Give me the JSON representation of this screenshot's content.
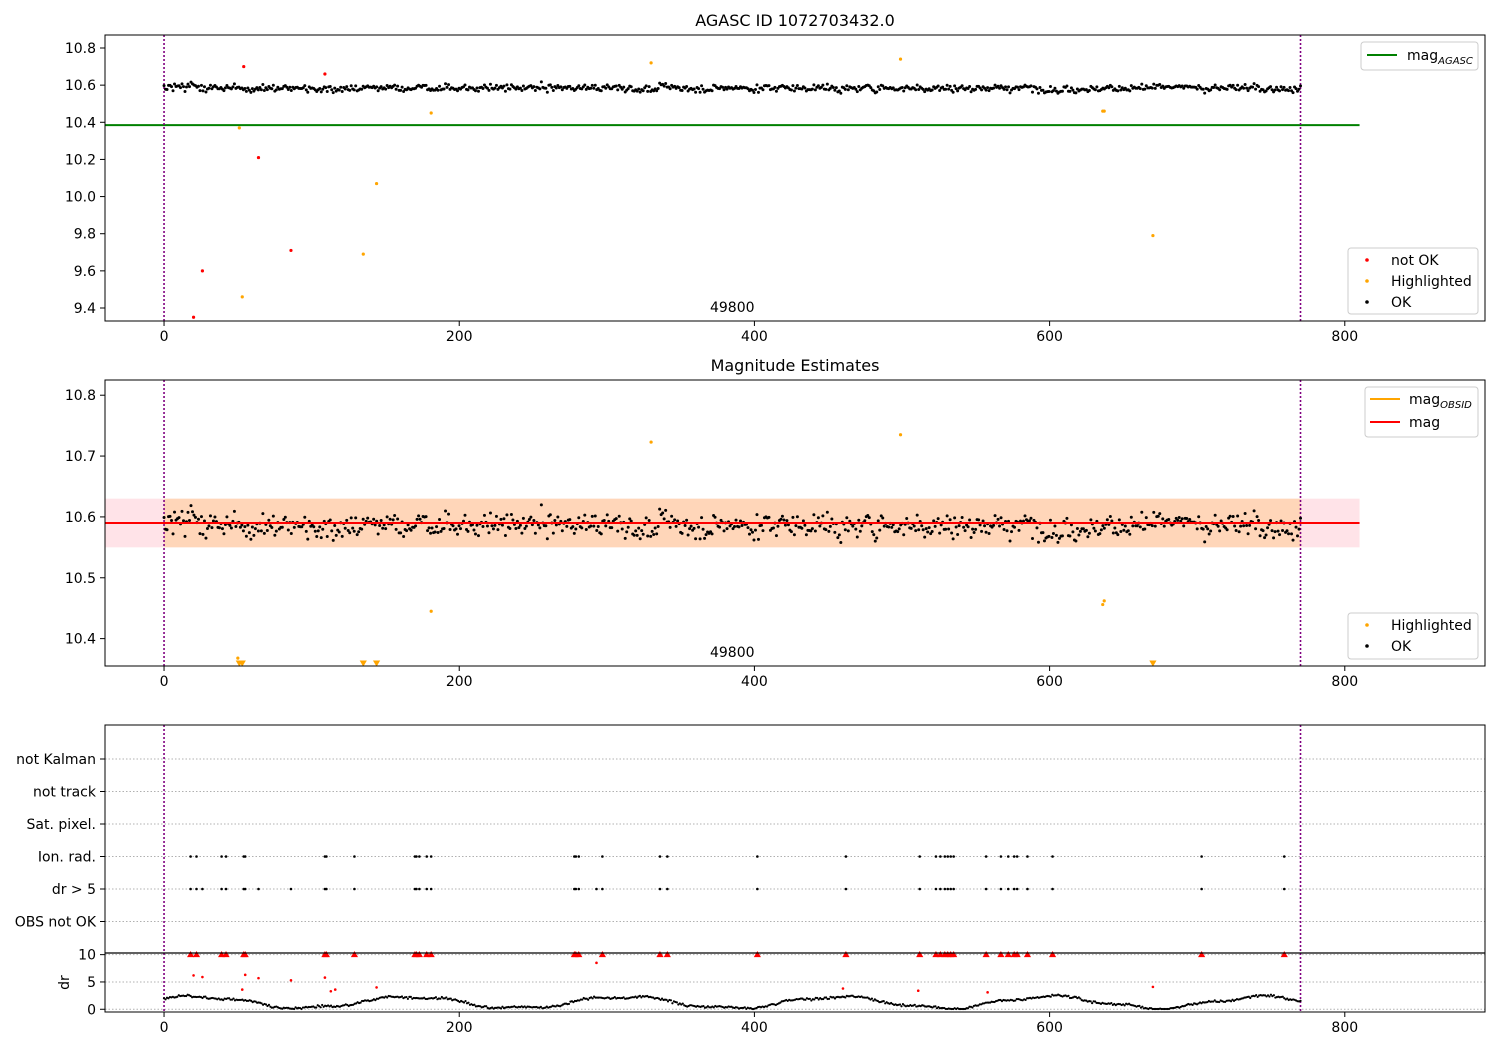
{
  "chart_data": [
    {
      "type": "scatter",
      "title": "AGASC ID 1072703432.0",
      "xlim": [
        -40,
        895
      ],
      "ylim": [
        9.33,
        10.87
      ],
      "x_ticks": [
        0,
        200,
        400,
        600,
        800
      ],
      "y_ticks": [
        9.4,
        9.6,
        9.8,
        10.0,
        10.2,
        10.4,
        10.6,
        10.8
      ],
      "annotation": "49800",
      "vlines": [
        0,
        770
      ],
      "legend_lines": {
        "position": "top-right",
        "entries": [
          {
            "label": "mag",
            "subscript": "AGASC",
            "color": "#008000"
          }
        ]
      },
      "legend_points": {
        "position": "bottom-right",
        "entries": [
          {
            "label": "not OK",
            "color": "#ff0000"
          },
          {
            "label": "Highlighted",
            "color": "#ffa500"
          },
          {
            "label": "OK",
            "color": "#000000"
          }
        ]
      },
      "mag_agasc": {
        "value": 10.385,
        "x_range": [
          -40,
          810
        ],
        "color": "#008000"
      },
      "ok_series": {
        "x_range": [
          0,
          770
        ],
        "count": 760,
        "center": 10.585,
        "spread": 0.03,
        "color": "#000000"
      },
      "not_ok_points": {
        "color": "#ff0000",
        "x": [
          20,
          26,
          54,
          64,
          86,
          109
        ],
        "y": [
          9.35,
          9.6,
          10.7,
          10.21,
          9.71,
          10.66
        ]
      },
      "highlighted_points": {
        "color": "#ffa500",
        "x": [
          51,
          53,
          135,
          144,
          181,
          330,
          499,
          636,
          637,
          670
        ],
        "y": [
          10.37,
          9.46,
          9.69,
          10.07,
          10.45,
          10.72,
          10.74,
          10.46,
          10.46,
          9.79
        ]
      }
    },
    {
      "type": "scatter",
      "title": "Magnitude Estimates",
      "xlim": [
        -40,
        895
      ],
      "ylim": [
        10.355,
        10.825
      ],
      "x_ticks": [
        0,
        200,
        400,
        600,
        800
      ],
      "y_ticks": [
        10.4,
        10.5,
        10.6,
        10.7,
        10.8
      ],
      "annotation": "49800",
      "vlines": [
        0,
        770
      ],
      "legend_lines": {
        "position": "top-right",
        "entries": [
          {
            "label": "mag",
            "subscript": "OBSID",
            "color": "#ffa500"
          },
          {
            "label": "mag",
            "subscript": "",
            "color": "#ff0000"
          }
        ]
      },
      "legend_points": {
        "position": "bottom-right",
        "entries": [
          {
            "label": "Highlighted",
            "color": "#ffa500"
          },
          {
            "label": "OK",
            "color": "#000000"
          }
        ]
      },
      "mag_line": {
        "value": 10.59,
        "x_range": [
          -40,
          810
        ],
        "color": "#ff0000"
      },
      "mag_band": {
        "low": 10.55,
        "high": 10.63,
        "x_range": [
          -40,
          810
        ],
        "color": "#ffc0cb"
      },
      "mag_obsid_band": {
        "low": 10.55,
        "high": 10.63,
        "x_range": [
          0,
          770
        ],
        "color": "#ffa500"
      },
      "ok_series": {
        "x_range": [
          0,
          770
        ],
        "count": 760,
        "center": 10.587,
        "spread": 0.03,
        "color": "#000000"
      },
      "highlighted_points": {
        "color": "#ffa500",
        "x": [
          181,
          330,
          499,
          636,
          637
        ],
        "y": [
          10.445,
          10.723,
          10.735,
          10.456,
          10.462
        ]
      },
      "clipped_markers": {
        "color": "#ffa500",
        "marker": "triangle-down",
        "x": [
          51,
          53,
          135,
          144,
          670
        ]
      }
    },
    {
      "type": "scatter",
      "title": "",
      "xlim": [
        -40,
        895
      ],
      "x_ticks": [
        0,
        200,
        400,
        600,
        800
      ],
      "vlines": [
        0,
        770
      ],
      "category_labels": [
        "not Kalman",
        "not track",
        "Sat. pixel.",
        "Ion. rad.",
        "dr > 5",
        "OBS not OK"
      ],
      "flag_x": [
        18,
        22,
        26,
        39,
        42,
        54,
        55,
        64,
        86,
        109,
        110,
        129,
        170,
        171,
        173,
        178,
        181,
        278,
        279,
        281,
        293,
        297,
        336,
        341,
        402,
        462,
        512,
        523,
        526,
        529,
        531,
        533,
        535,
        557,
        567,
        572,
        576,
        578,
        585,
        602,
        703,
        759
      ],
      "ion_rad_x": [
        18,
        22,
        39,
        42,
        54,
        55,
        109,
        110,
        129,
        170,
        171,
        173,
        178,
        181,
        278,
        279,
        281,
        297,
        336,
        341,
        402,
        462,
        512,
        523,
        526,
        529,
        531,
        533,
        535,
        557,
        567,
        572,
        576,
        578,
        585,
        602,
        703,
        759
      ]
    },
    {
      "type": "scatter",
      "title": "",
      "ylabel": "dr",
      "xlim": [
        -40,
        895
      ],
      "ylim": [
        -0.5,
        10.3
      ],
      "x_ticks": [
        0,
        200,
        400,
        600,
        800
      ],
      "y_ticks": [
        0,
        5,
        10
      ],
      "vlines": [
        0,
        770
      ],
      "dr_series": {
        "x_range": [
          0,
          770
        ],
        "count": 770,
        "color": "#000000"
      },
      "red_clipped": {
        "color": "#ff0000",
        "marker": "triangle-up",
        "x": [
          18,
          22,
          39,
          42,
          54,
          55,
          109,
          110,
          129,
          170,
          171,
          173,
          178,
          181,
          278,
          279,
          281,
          297,
          336,
          341,
          402,
          462,
          512,
          523,
          526,
          529,
          531,
          533,
          535,
          557,
          567,
          572,
          576,
          578,
          585,
          602,
          703,
          759
        ]
      },
      "red_points": {
        "color": "#ff0000",
        "x": [
          20,
          26,
          53,
          55,
          64,
          86,
          109,
          113,
          116,
          144,
          293,
          460,
          511,
          558,
          670
        ],
        "y": [
          6.2,
          5.9,
          3.6,
          6.3,
          5.7,
          5.3,
          5.8,
          3.3,
          3.6,
          4.0,
          8.5,
          3.8,
          3.4,
          3.1,
          4.1
        ]
      }
    }
  ]
}
